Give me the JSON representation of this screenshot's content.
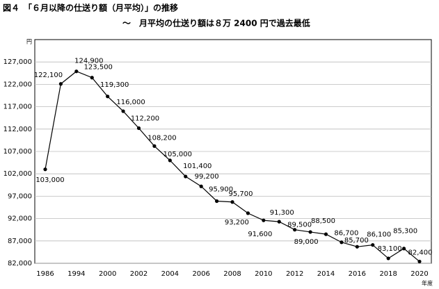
{
  "chart_data": {
    "type": "line",
    "title": "図４　「６月以降の仕送り額（月平均）」の推移",
    "subtitle": "～　月平均の仕送り額は８万 2400 円で過去最低",
    "y_label": "円",
    "x_label": "年度",
    "categories": [
      "1986",
      null,
      "1994",
      null,
      "2000",
      null,
      "2002",
      null,
      "2004",
      null,
      "2006",
      null,
      "2008",
      null,
      "2010",
      null,
      "2012",
      null,
      "2014",
      null,
      "2016",
      null,
      "2018",
      null,
      "2020"
    ],
    "series": [
      {
        "name": "仕送り額",
        "color": "#000000",
        "values": [
          103000,
          122100,
          124900,
          123500,
          119300,
          116000,
          112200,
          108200,
          105000,
          101400,
          99200,
          95900,
          95700,
          93200,
          91600,
          91300,
          89500,
          89000,
          88500,
          86700,
          85700,
          86100,
          83100,
          85300,
          82400
        ],
        "value_labels": [
          "103,000",
          "122,100",
          "124,900",
          "123,500",
          "119,300",
          "116,000",
          "112,200",
          "108,200",
          "105,000",
          "101,400",
          "99,200",
          "95,900",
          "95,700",
          "93,200",
          "91,600",
          "91,300",
          "89,500",
          "89,000",
          "88,500",
          "86,700",
          "85,700",
          "86,100",
          "83,100",
          "85,300",
          "82,400"
        ]
      }
    ],
    "ylim": [
      82000,
      132000
    ],
    "yticks": [
      {
        "value": 82000,
        "label": "82,000"
      },
      {
        "value": 87000,
        "label": "87,000"
      },
      {
        "value": 92000,
        "label": "92,000"
      },
      {
        "value": 97000,
        "label": "97,000"
      },
      {
        "value": 102000,
        "label": "102,000"
      },
      {
        "value": 107000,
        "label": "107,000"
      },
      {
        "value": 112000,
        "label": "112,000"
      },
      {
        "value": 117000,
        "label": "117,000"
      },
      {
        "value": 122000,
        "label": "122,000"
      },
      {
        "value": 127000,
        "label": "127,000"
      }
    ],
    "grid": true
  }
}
